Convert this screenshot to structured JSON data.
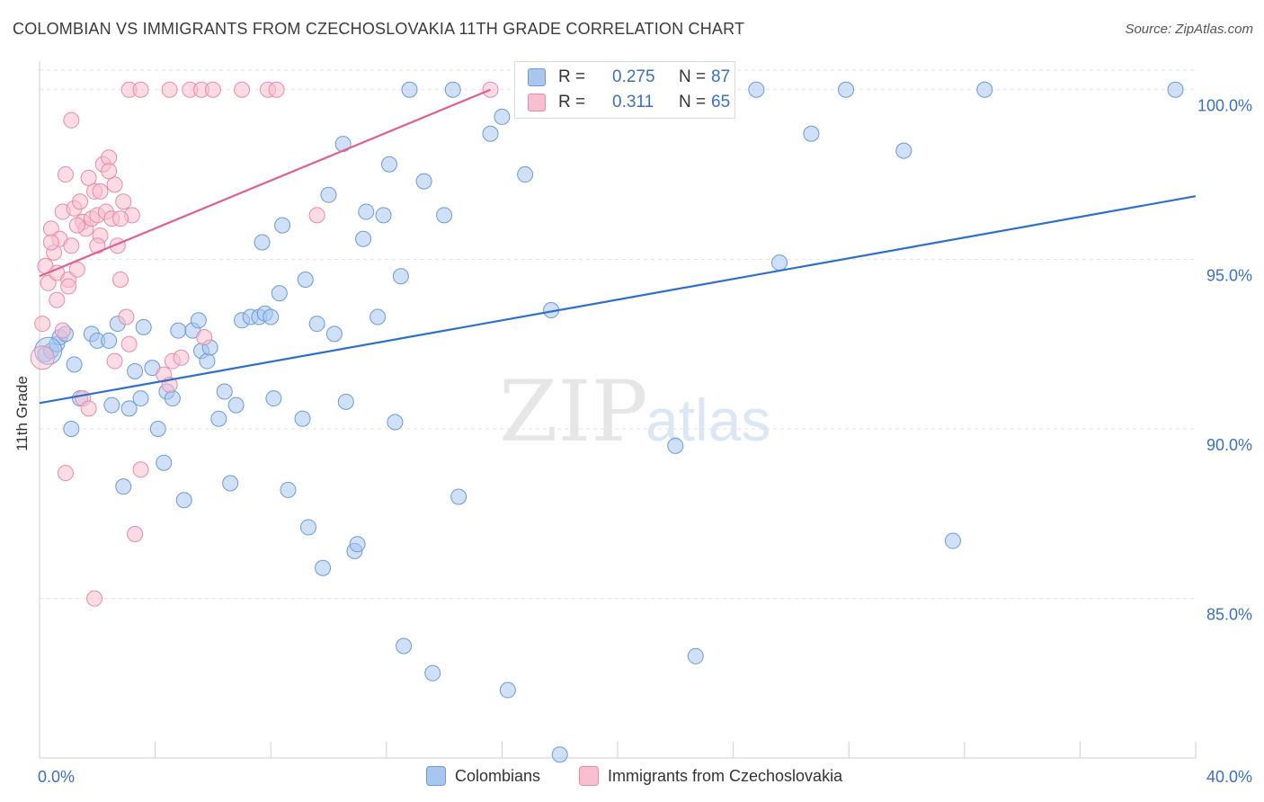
{
  "title": "COLOMBIAN VS IMMIGRANTS FROM CZECHOSLOVAKIA 11TH GRADE CORRELATION CHART",
  "source": "Source: ZipAtlas.com",
  "watermark": {
    "zip": "ZIP",
    "atlas": "atlas"
  },
  "legend": {
    "rows": [
      {
        "r_label": "R =",
        "r_value": "0.275",
        "n_label": "N =",
        "n_value": "87",
        "color": "#a9c6ef",
        "edge": "#6a9bd8"
      },
      {
        "r_label": "R =",
        "r_value": "0.311",
        "n_label": "N =",
        "n_value": "65",
        "color": "#f7bfd0",
        "edge": "#e88aa8"
      }
    ]
  },
  "bottom_legend": [
    {
      "label": "Colombians",
      "color": "#a9c6ef"
    },
    {
      "label": "Immigrants from Czechoslovakia",
      "color": "#f7bfd0"
    }
  ],
  "chart_data": {
    "type": "scatter",
    "title": "COLOMBIAN VS IMMIGRANTS FROM CZECHOSLOVAKIA 11TH GRADE CORRELATION CHART",
    "ylabel": "11th Grade",
    "xlabel": "",
    "xlim": [
      0,
      40
    ],
    "ylim": [
      80.3,
      101.0
    ],
    "x_tick_labels": [
      "0.0%",
      "40.0%"
    ],
    "y_ticks": [
      85,
      90,
      95,
      100
    ],
    "y_tick_labels": [
      "85.0%",
      "90.0%",
      "95.0%",
      "100.0%"
    ],
    "grid": true,
    "series": [
      {
        "name": "Colombians",
        "color": "#6a9bd8",
        "fill": "#a9c6ef",
        "trend_color": "#2d6fce",
        "trend": [
          [
            0.0,
            90.76
          ],
          [
            40.0,
            96.86
          ]
        ],
        "points": [
          [
            0.2,
            92.2
          ],
          [
            0.4,
            92.3
          ],
          [
            0.6,
            92.5
          ],
          [
            0.7,
            92.7
          ],
          [
            0.9,
            92.8
          ],
          [
            1.1,
            90.0
          ],
          [
            1.2,
            91.9
          ],
          [
            1.4,
            90.9
          ],
          [
            1.8,
            92.8
          ],
          [
            2.0,
            92.6
          ],
          [
            2.4,
            92.6
          ],
          [
            2.5,
            90.7
          ],
          [
            2.7,
            93.1
          ],
          [
            2.9,
            88.3
          ],
          [
            3.1,
            90.6
          ],
          [
            3.3,
            91.7
          ],
          [
            3.5,
            90.9
          ],
          [
            3.6,
            93.0
          ],
          [
            3.9,
            91.8
          ],
          [
            4.1,
            90.0
          ],
          [
            4.3,
            89.0
          ],
          [
            4.4,
            91.1
          ],
          [
            4.6,
            90.9
          ],
          [
            4.8,
            92.9
          ],
          [
            5.0,
            87.9
          ],
          [
            5.3,
            92.9
          ],
          [
            5.5,
            93.2
          ],
          [
            5.6,
            92.3
          ],
          [
            5.8,
            92.0
          ],
          [
            5.9,
            92.4
          ],
          [
            6.2,
            90.3
          ],
          [
            6.4,
            91.1
          ],
          [
            6.6,
            88.4
          ],
          [
            6.8,
            90.7
          ],
          [
            7.0,
            93.2
          ],
          [
            7.3,
            93.3
          ],
          [
            7.6,
            93.3
          ],
          [
            7.7,
            95.5
          ],
          [
            7.8,
            93.4
          ],
          [
            8.0,
            93.3
          ],
          [
            8.1,
            90.9
          ],
          [
            8.3,
            94.0
          ],
          [
            8.4,
            96.0
          ],
          [
            8.6,
            88.2
          ],
          [
            9.1,
            90.3
          ],
          [
            9.2,
            94.4
          ],
          [
            9.3,
            87.1
          ],
          [
            9.6,
            93.1
          ],
          [
            9.8,
            85.9
          ],
          [
            10.0,
            96.9
          ],
          [
            10.2,
            92.8
          ],
          [
            10.5,
            98.4
          ],
          [
            10.6,
            90.8
          ],
          [
            10.9,
            86.4
          ],
          [
            11.0,
            86.6
          ],
          [
            11.2,
            95.6
          ],
          [
            11.3,
            96.4
          ],
          [
            11.7,
            93.3
          ],
          [
            11.9,
            96.3
          ],
          [
            12.1,
            97.8
          ],
          [
            12.3,
            90.2
          ],
          [
            12.5,
            94.5
          ],
          [
            12.6,
            83.6
          ],
          [
            12.8,
            100.0
          ],
          [
            13.3,
            97.3
          ],
          [
            13.6,
            82.8
          ],
          [
            14.0,
            96.3
          ],
          [
            14.3,
            100.0
          ],
          [
            14.5,
            88.0
          ],
          [
            15.6,
            98.7
          ],
          [
            16.0,
            99.2
          ],
          [
            16.2,
            82.3
          ],
          [
            16.8,
            97.5
          ],
          [
            17.7,
            93.5
          ],
          [
            18.0,
            80.4
          ],
          [
            19.1,
            100.0
          ],
          [
            20.0,
            99.5
          ],
          [
            22.0,
            89.5
          ],
          [
            22.7,
            83.3
          ],
          [
            24.8,
            100.0
          ],
          [
            25.6,
            94.9
          ],
          [
            26.7,
            98.7
          ],
          [
            27.9,
            100.0
          ],
          [
            29.9,
            98.2
          ],
          [
            31.6,
            86.7
          ],
          [
            32.7,
            100.0
          ],
          [
            39.3,
            100.0
          ]
        ]
      },
      {
        "name": "Immigrants from Czechoslovakia",
        "color": "#e88aa8",
        "fill": "#f7bfd0",
        "trend_color": "#e0608b",
        "trend": [
          [
            0.0,
            94.5
          ],
          [
            15.6,
            100.0
          ]
        ],
        "points": [
          [
            0.1,
            93.1
          ],
          [
            0.2,
            94.8
          ],
          [
            0.3,
            94.3
          ],
          [
            0.4,
            95.9
          ],
          [
            0.5,
            95.2
          ],
          [
            0.6,
            94.6
          ],
          [
            0.7,
            95.6
          ],
          [
            0.8,
            96.4
          ],
          [
            0.9,
            97.5
          ],
          [
            1.0,
            94.4
          ],
          [
            1.1,
            95.4
          ],
          [
            1.2,
            96.5
          ],
          [
            1.3,
            94.7
          ],
          [
            1.4,
            96.7
          ],
          [
            1.5,
            96.1
          ],
          [
            1.6,
            95.9
          ],
          [
            1.7,
            97.4
          ],
          [
            1.8,
            96.2
          ],
          [
            1.9,
            97.0
          ],
          [
            2.0,
            96.3
          ],
          [
            2.1,
            95.7
          ],
          [
            2.2,
            97.8
          ],
          [
            2.3,
            96.4
          ],
          [
            2.4,
            98.0
          ],
          [
            2.5,
            96.2
          ],
          [
            2.6,
            97.2
          ],
          [
            2.7,
            95.4
          ],
          [
            2.8,
            94.4
          ],
          [
            2.9,
            96.7
          ],
          [
            3.0,
            93.3
          ],
          [
            3.1,
            92.5
          ],
          [
            3.2,
            96.3
          ],
          [
            0.6,
            93.8
          ],
          [
            0.8,
            92.9
          ],
          [
            0.9,
            88.7
          ],
          [
            1.0,
            94.2
          ],
          [
            1.1,
            99.1
          ],
          [
            1.5,
            90.9
          ],
          [
            1.7,
            90.6
          ],
          [
            1.9,
            85.0
          ],
          [
            2.0,
            95.4
          ],
          [
            2.6,
            92.0
          ],
          [
            3.3,
            86.9
          ],
          [
            3.5,
            88.8
          ],
          [
            4.3,
            91.6
          ],
          [
            4.5,
            91.3
          ],
          [
            4.6,
            92.0
          ],
          [
            4.9,
            92.1
          ],
          [
            5.7,
            92.7
          ],
          [
            9.6,
            96.3
          ],
          [
            3.1,
            100.0
          ],
          [
            3.5,
            100.0
          ],
          [
            4.5,
            100.0
          ],
          [
            5.2,
            100.0
          ],
          [
            5.6,
            100.0
          ],
          [
            6.0,
            100.0
          ],
          [
            7.0,
            100.0
          ],
          [
            7.9,
            100.0
          ],
          [
            8.2,
            100.0
          ],
          [
            15.6,
            100.0
          ],
          [
            2.1,
            97.0
          ],
          [
            2.4,
            97.6
          ],
          [
            2.8,
            96.2
          ],
          [
            1.3,
            96.0
          ],
          [
            0.4,
            95.5
          ]
        ]
      }
    ]
  }
}
